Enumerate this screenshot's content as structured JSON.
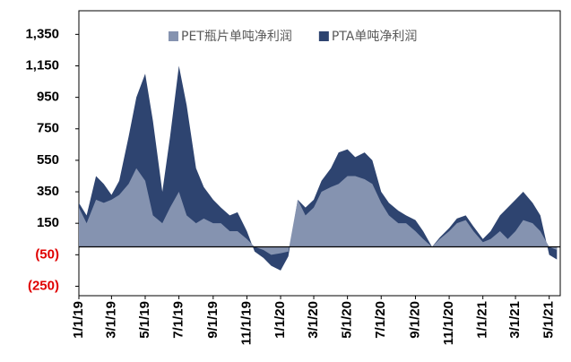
{
  "chart_data": {
    "type": "area",
    "x": [
      "1/1/19",
      "1/15/19",
      "2/1/19",
      "2/15/19",
      "3/1/19",
      "3/15/19",
      "4/1/19",
      "4/15/19",
      "5/1/19",
      "5/15/19",
      "6/1/19",
      "6/15/19",
      "7/1/19",
      "7/15/19",
      "8/1/19",
      "8/15/19",
      "9/1/19",
      "9/15/19",
      "10/1/19",
      "10/15/19",
      "11/1/19",
      "11/15/19",
      "12/1/19",
      "12/15/19",
      "1/1/20",
      "1/15/20",
      "2/1/20",
      "2/15/20",
      "3/1/20",
      "3/15/20",
      "4/1/20",
      "4/15/20",
      "5/1/20",
      "5/15/20",
      "6/1/20",
      "6/15/20",
      "7/1/20",
      "7/15/20",
      "8/1/20",
      "8/15/20",
      "9/1/20",
      "9/15/20",
      "10/1/20",
      "10/15/20",
      "11/1/20",
      "11/15/20",
      "12/1/20",
      "12/15/20",
      "1/1/21",
      "1/15/21",
      "2/1/21",
      "2/15/21",
      "3/1/21",
      "3/15/21",
      "4/1/21",
      "4/15/21",
      "5/1/21",
      "5/15/21"
    ],
    "series": [
      {
        "name": "PTA单吨净利润",
        "color": "#2e4470",
        "values": [
          280,
          200,
          450,
          400,
          330,
          420,
          700,
          950,
          1100,
          800,
          350,
          700,
          1150,
          900,
          500,
          380,
          300,
          250,
          200,
          220,
          100,
          -30,
          -70,
          -120,
          -150,
          -60,
          300,
          250,
          300,
          420,
          500,
          600,
          620,
          570,
          600,
          550,
          350,
          280,
          230,
          200,
          170,
          100,
          0,
          60,
          120,
          180,
          200,
          130,
          50,
          100,
          200,
          250,
          300,
          350,
          280,
          200,
          -50,
          -80
        ]
      },
      {
        "name": "PET瓶片单吨净利润",
        "color": "#8593b0",
        "values": [
          250,
          150,
          300,
          280,
          300,
          330,
          400,
          500,
          420,
          200,
          150,
          250,
          350,
          200,
          150,
          180,
          150,
          150,
          100,
          100,
          50,
          0,
          -20,
          -50,
          -40,
          -30,
          300,
          200,
          250,
          350,
          380,
          400,
          450,
          450,
          430,
          400,
          280,
          200,
          150,
          150,
          100,
          50,
          0,
          50,
          100,
          150,
          170,
          100,
          30,
          50,
          100,
          50,
          100,
          170,
          150,
          100,
          0,
          -20
        ]
      }
    ],
    "legend_order": [
      1,
      0
    ],
    "xlim": [
      "1/1/19",
      "5/21/21"
    ],
    "xticks": [
      "1/1/19",
      "3/1/19",
      "5/1/19",
      "7/1/19",
      "9/1/19",
      "11/1/19",
      "1/1/20",
      "3/1/20",
      "5/1/20",
      "7/1/20",
      "9/1/20",
      "11/1/20",
      "1/1/21",
      "3/1/21",
      "5/1/21"
    ],
    "ylim": [
      -310,
      1500
    ],
    "yticks": [
      {
        "value": 1350,
        "label": "1,350"
      },
      {
        "value": 1150,
        "label": "1,150"
      },
      950,
      750,
      550,
      350,
      150,
      {
        "value": -50,
        "label": "(50)"
      },
      {
        "value": -250,
        "label": "(250)"
      }
    ],
    "negative_label_color": "#e00000"
  }
}
